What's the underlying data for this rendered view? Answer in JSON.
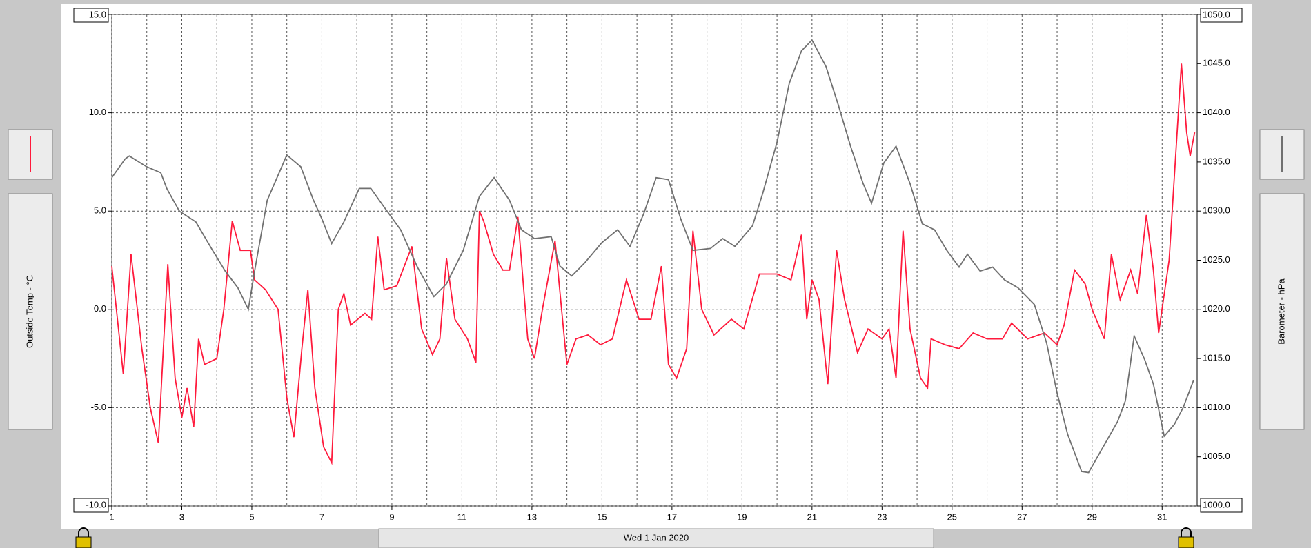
{
  "chart_data": {
    "type": "line",
    "date_label": "Wed 1 Jan 2020",
    "ylabel": "Outside Temp - °C",
    "y2label": "Barometer - hPa",
    "xlim": [
      1,
      32
    ],
    "xticks": [
      1,
      3,
      5,
      7,
      9,
      11,
      13,
      15,
      17,
      19,
      21,
      23,
      25,
      27,
      29,
      31
    ],
    "xminor": [
      2,
      4,
      6,
      8,
      10,
      12,
      14,
      16,
      18,
      20,
      22,
      24,
      26,
      28,
      30
    ],
    "ylim": [
      -10,
      15
    ],
    "yticks": [
      {
        "value": -10,
        "label": "-10.0"
      },
      {
        "value": -5,
        "label": "-5.0"
      },
      {
        "value": 0,
        "label": "0.0"
      },
      {
        "value": 5,
        "label": "5.0"
      },
      {
        "value": 10,
        "label": "10.0"
      },
      {
        "value": 15,
        "label": "15.0"
      }
    ],
    "y2lim": [
      1000,
      1050
    ],
    "y2ticks": [
      {
        "value": 1000,
        "label": "1000.0"
      },
      {
        "value": 1005,
        "label": "1005.0"
      },
      {
        "value": 1010,
        "label": "1010.0"
      },
      {
        "value": 1015,
        "label": "1015.0"
      },
      {
        "value": 1020,
        "label": "1020.0"
      },
      {
        "value": 1025,
        "label": "1025.0"
      },
      {
        "value": 1030,
        "label": "1030.0"
      },
      {
        "value": 1035,
        "label": "1035.0"
      },
      {
        "value": 1040,
        "label": "1040.0"
      },
      {
        "value": 1045,
        "label": "1045.0"
      },
      {
        "value": 1050,
        "label": "1050.0"
      }
    ],
    "grid": true,
    "series": [
      {
        "color": "#ff1a3c",
        "axis": "y",
        "x": [
          1.0,
          1.33,
          1.55,
          1.86,
          2.1,
          2.33,
          2.6,
          2.81,
          3.0,
          3.15,
          3.34,
          3.48,
          3.65,
          4.0,
          4.2,
          4.44,
          4.67,
          4.96,
          5.08,
          5.39,
          5.75,
          6.0,
          6.2,
          6.43,
          6.6,
          6.8,
          7.05,
          7.28,
          7.47,
          7.63,
          7.82,
          8.23,
          8.42,
          8.6,
          8.78,
          9.14,
          9.57,
          9.85,
          10.16,
          10.37,
          10.56,
          10.8,
          11.16,
          11.4,
          11.5,
          11.62,
          11.9,
          12.17,
          12.36,
          12.6,
          12.88,
          13.07,
          13.3,
          13.66,
          13.9,
          14.0,
          14.26,
          14.6,
          14.96,
          15.3,
          15.7,
          16.06,
          16.4,
          16.7,
          16.9,
          17.13,
          17.42,
          17.6,
          17.85,
          18.2,
          18.7,
          19.05,
          19.5,
          20.0,
          20.4,
          20.7,
          20.85,
          21.0,
          21.2,
          21.45,
          21.7,
          21.93,
          22.3,
          22.6,
          23.0,
          23.2,
          23.4,
          23.6,
          23.8,
          24.1,
          24.3,
          24.4,
          24.8,
          25.2,
          25.6,
          26.0,
          26.44,
          26.7,
          27.16,
          27.64,
          28.0,
          28.2,
          28.5,
          28.8,
          29.0,
          29.35,
          29.55,
          29.8,
          30.1,
          30.3,
          30.55,
          30.75,
          30.9,
          31.2,
          31.55,
          31.7,
          31.8,
          31.93
        ],
        "values": [
          2.2,
          -3.3,
          2.8,
          -2,
          -5,
          -6.8,
          2.3,
          -3.5,
          -5.5,
          -4,
          -6,
          -1.5,
          -2.8,
          -2.5,
          0,
          4.5,
          3,
          3,
          1.5,
          1,
          0,
          -4.5,
          -6.5,
          -2,
          1,
          -4,
          -7,
          -7.8,
          0,
          0.8,
          -0.8,
          -0.2,
          -0.5,
          3.7,
          1,
          1.2,
          3.2,
          -1,
          -2.3,
          -1.5,
          2.6,
          -0.5,
          -1.5,
          -2.7,
          5,
          4.5,
          2.8,
          2,
          2,
          4.7,
          -1.5,
          -2.5,
          0,
          3.5,
          -1,
          -2.8,
          -1.5,
          -1.3,
          -1.8,
          -1.5,
          1.5,
          -0.5,
          -0.5,
          2.2,
          -2.8,
          -3.5,
          -2,
          4,
          0,
          -1.3,
          -0.5,
          -1,
          1.8,
          1.8,
          1.5,
          3.8,
          -0.5,
          1.5,
          0.5,
          -3.8,
          3,
          0.5,
          -2.2,
          -1,
          -1.5,
          -1,
          -3.5,
          4,
          -1,
          -3.5,
          -4,
          -1.5,
          -1.8,
          -2,
          -1.2,
          -1.5,
          -1.5,
          -0.7,
          -1.5,
          -1.2,
          -1.8,
          -0.8,
          2,
          1.3,
          0,
          -1.5,
          2.8,
          0.5,
          2,
          0.8,
          4.8,
          2,
          -1.2,
          2.5,
          12.5,
          9,
          7.8,
          9
        ]
      },
      {
        "color": "#707070",
        "axis": "y2",
        "x": [
          1.0,
          1.38,
          1.5,
          2.0,
          2.4,
          2.57,
          2.93,
          3.4,
          3.88,
          4.24,
          4.6,
          4.9,
          5.08,
          5.44,
          6.0,
          6.4,
          6.75,
          7.0,
          7.28,
          7.63,
          8.07,
          8.4,
          8.78,
          9.25,
          9.73,
          10.2,
          10.56,
          11.04,
          11.5,
          11.92,
          12.36,
          12.7,
          13.07,
          13.55,
          13.8,
          14.14,
          14.5,
          15.0,
          15.45,
          15.8,
          16.2,
          16.55,
          16.9,
          17.25,
          17.6,
          18.1,
          18.45,
          18.8,
          19.3,
          19.6,
          20.0,
          20.35,
          20.7,
          21.0,
          21.4,
          21.75,
          22.1,
          22.46,
          22.7,
          23.05,
          23.4,
          23.8,
          24.15,
          24.5,
          24.85,
          25.2,
          25.44,
          25.8,
          26.16,
          26.5,
          26.88,
          27.35,
          27.7,
          28.0,
          28.3,
          28.7,
          28.9,
          29.25,
          29.73,
          29.95,
          30.2,
          30.5,
          30.75,
          31.06,
          31.35,
          31.6,
          31.9
        ],
        "values": [
          1033.4,
          1035.3,
          1035.6,
          1034.5,
          1033.9,
          1032.3,
          1030.0,
          1028.9,
          1026.0,
          1023.9,
          1022.2,
          1020.0,
          1023.9,
          1031.1,
          1035.7,
          1034.5,
          1031.2,
          1029.2,
          1026.7,
          1028.9,
          1032.3,
          1032.3,
          1030.4,
          1028.1,
          1024.3,
          1021.3,
          1022.6,
          1026.0,
          1031.5,
          1033.4,
          1031.1,
          1028.1,
          1027.2,
          1027.4,
          1024.4,
          1023.4,
          1024.7,
          1026.8,
          1028.1,
          1026.4,
          1029.8,
          1033.4,
          1033.2,
          1029.2,
          1026.0,
          1026.2,
          1027.2,
          1026.4,
          1028.5,
          1031.9,
          1037.0,
          1043.0,
          1046.3,
          1047.4,
          1044.7,
          1040.8,
          1036.6,
          1032.8,
          1030.8,
          1034.9,
          1036.6,
          1032.8,
          1028.7,
          1028.1,
          1026.0,
          1024.3,
          1025.6,
          1023.9,
          1024.3,
          1023.0,
          1022.2,
          1020.5,
          1016.6,
          1011.5,
          1007.3,
          1003.5,
          1003.4,
          1005.6,
          1008.6,
          1010.7,
          1017.3,
          1014.9,
          1012.4,
          1007.1,
          1008.3,
          1010.0,
          1012.8
        ]
      }
    ]
  }
}
